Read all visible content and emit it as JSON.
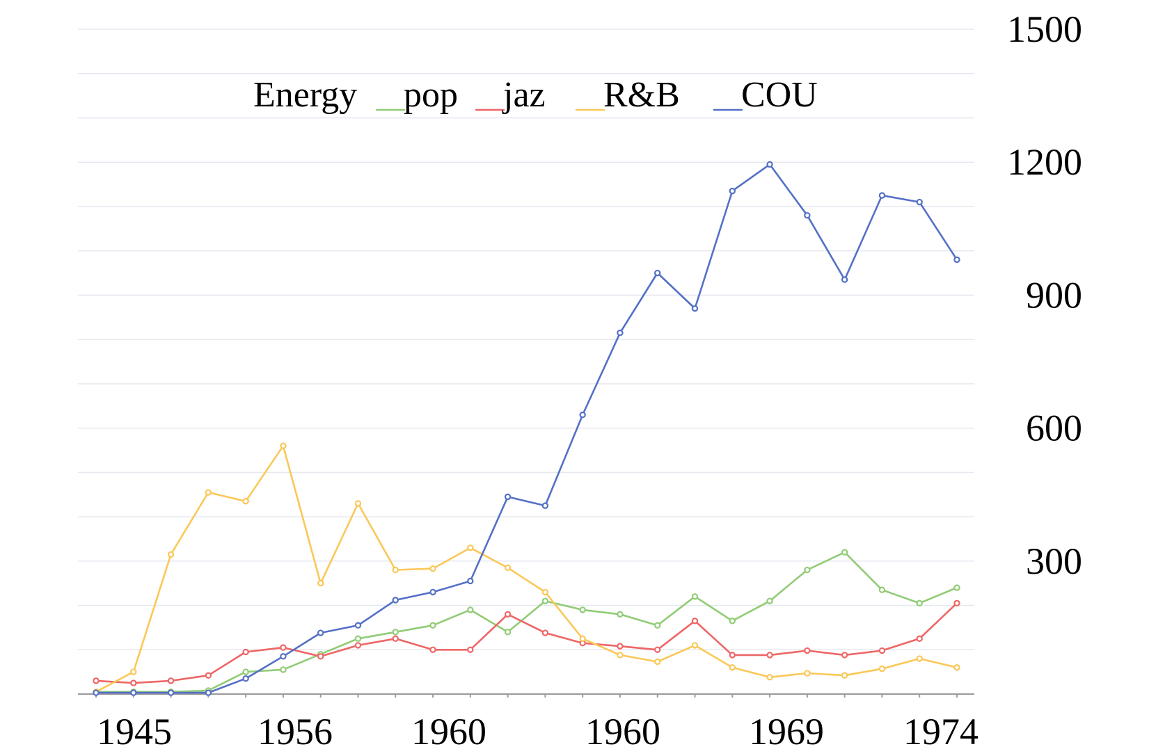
{
  "chart_data": {
    "type": "line",
    "legend": {
      "title": "Energy",
      "placement": "top-center"
    },
    "x_tick_labels": [
      "1945",
      "1956",
      "1960",
      "1960",
      "1969",
      "1974"
    ],
    "x_point_count": 24,
    "y_axis": {
      "side": "right",
      "range": [
        0,
        1500
      ],
      "ticks": [
        300,
        600,
        900,
        1200,
        1500
      ],
      "minor_step": 100
    },
    "grid": true,
    "series": [
      {
        "name": "pop",
        "color": "#91cc75",
        "values": [
          5,
          5,
          5,
          8,
          50,
          55,
          90,
          125,
          140,
          155,
          190,
          140,
          210,
          190,
          180,
          155,
          220,
          165,
          210,
          280,
          320,
          235,
          205,
          240
        ]
      },
      {
        "name": "jaz",
        "color": "#ee6666",
        "values": [
          30,
          25,
          30,
          42,
          95,
          105,
          85,
          110,
          125,
          100,
          100,
          180,
          138,
          115,
          108,
          100,
          165,
          88,
          88,
          98,
          88,
          98,
          125,
          205
        ]
      },
      {
        "name": "R&B",
        "color": "#fac858",
        "values": [
          5,
          50,
          315,
          455,
          435,
          560,
          250,
          430,
          280,
          283,
          330,
          285,
          230,
          125,
          88,
          73,
          110,
          60,
          38,
          47,
          42,
          57,
          80,
          60
        ]
      },
      {
        "name": "COU",
        "color": "#5470c6",
        "values": [
          3,
          3,
          3,
          3,
          35,
          85,
          138,
          155,
          212,
          230,
          255,
          445,
          425,
          630,
          815,
          950,
          870,
          1135,
          1195,
          1080,
          935,
          1125,
          1110,
          980
        ]
      }
    ]
  }
}
